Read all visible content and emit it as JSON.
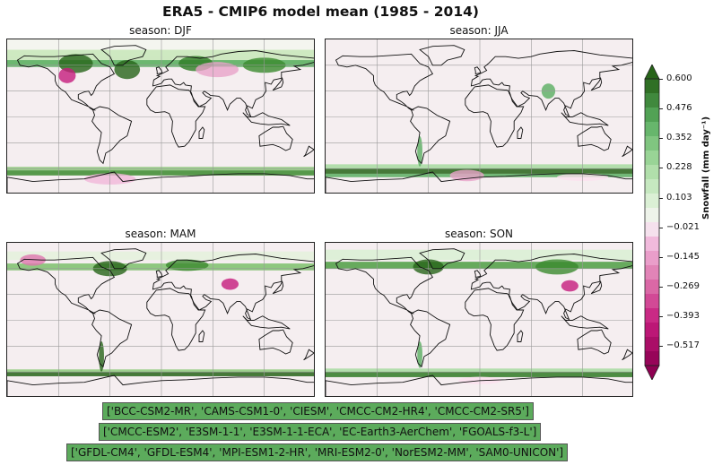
{
  "title": "ERA5 - CMIP6 model mean (1985 - 2014)",
  "panels": [
    {
      "season_label": "season: DJF"
    },
    {
      "season_label": "season: JJA"
    },
    {
      "season_label": "season: MAM"
    },
    {
      "season_label": "season: SON"
    }
  ],
  "colorbar": {
    "label": "Snowfall (mm day⁻¹)",
    "ticks": [
      "0.600",
      "0.476",
      "0.352",
      "0.228",
      "0.103",
      "−0.021",
      "−0.145",
      "−0.269",
      "−0.393",
      "−0.517"
    ],
    "vmin": -0.6,
    "vmax": 0.6,
    "colormap": "PiYG",
    "extend": "both"
  },
  "model_groups": [
    "['BCC-CSM2-MR', 'CAMS-CSM1-0', 'CIESM', 'CMCC-CM2-HR4', 'CMCC-CM2-SR5']",
    "['CMCC-ESM2', 'E3SM-1-1', 'E3SM-1-1-ECA', 'EC-Earth3-AerChem', 'FGOALS-f3-L']",
    "['GFDL-CM4', 'GFDL-ESM4', 'MPI-ESM1-2-HR', 'MRI-ESM2-0', 'NorESM2-MM', 'SAM0-UNICON']"
  ],
  "colors": {
    "positive_max": "#276419",
    "neutral": "#f7f7f7",
    "negative_max": "#8e0152",
    "model_box": "#5cab5c"
  }
}
